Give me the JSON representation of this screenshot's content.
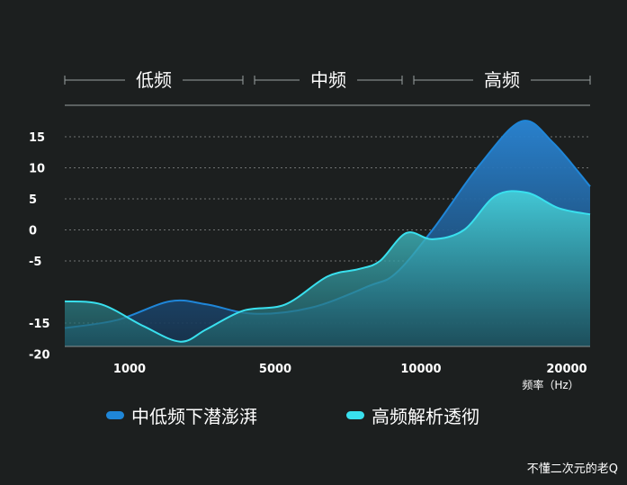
{
  "chart_data": {
    "type": "area",
    "title": "",
    "xlabel": "频率（Hz）",
    "ylabel": "",
    "x_ticks": [
      "1000",
      "5000",
      "10000",
      "20000"
    ],
    "y_ticks": [
      15,
      10,
      5,
      0,
      -5,
      -15,
      -20
    ],
    "bands": [
      "低频",
      "中频",
      "高频"
    ],
    "series": [
      {
        "name": "中低频下潜澎湃",
        "color": "#1f86d8",
        "points": [
          [
            0.0,
            -15.8
          ],
          [
            0.1,
            -14.5
          ],
          [
            0.2,
            -11.5
          ],
          [
            0.27,
            -12.0
          ],
          [
            0.36,
            -13.5
          ],
          [
            0.47,
            -12.5
          ],
          [
            0.58,
            -9.0
          ],
          [
            0.63,
            -7.0
          ],
          [
            0.7,
            0.0
          ],
          [
            0.79,
            10.5
          ],
          [
            0.87,
            17.5
          ],
          [
            0.93,
            14.0
          ],
          [
            1.0,
            7.0
          ]
        ]
      },
      {
        "name": "高频解析透彻",
        "color": "#39e0ee",
        "points": [
          [
            0.0,
            -11.5
          ],
          [
            0.07,
            -12.0
          ],
          [
            0.15,
            -15.5
          ],
          [
            0.22,
            -18.0
          ],
          [
            0.27,
            -16.0
          ],
          [
            0.34,
            -13.0
          ],
          [
            0.42,
            -12.0
          ],
          [
            0.5,
            -7.5
          ],
          [
            0.56,
            -6.3
          ],
          [
            0.6,
            -5.0
          ],
          [
            0.65,
            -0.5
          ],
          [
            0.7,
            -1.5
          ],
          [
            0.76,
            0.0
          ],
          [
            0.82,
            5.5
          ],
          [
            0.88,
            6.0
          ],
          [
            0.94,
            3.5
          ],
          [
            1.0,
            2.5
          ]
        ]
      }
    ],
    "ylim": [
      -20,
      20
    ],
    "grid": true
  },
  "watermark": "不懂二次元的老Q"
}
